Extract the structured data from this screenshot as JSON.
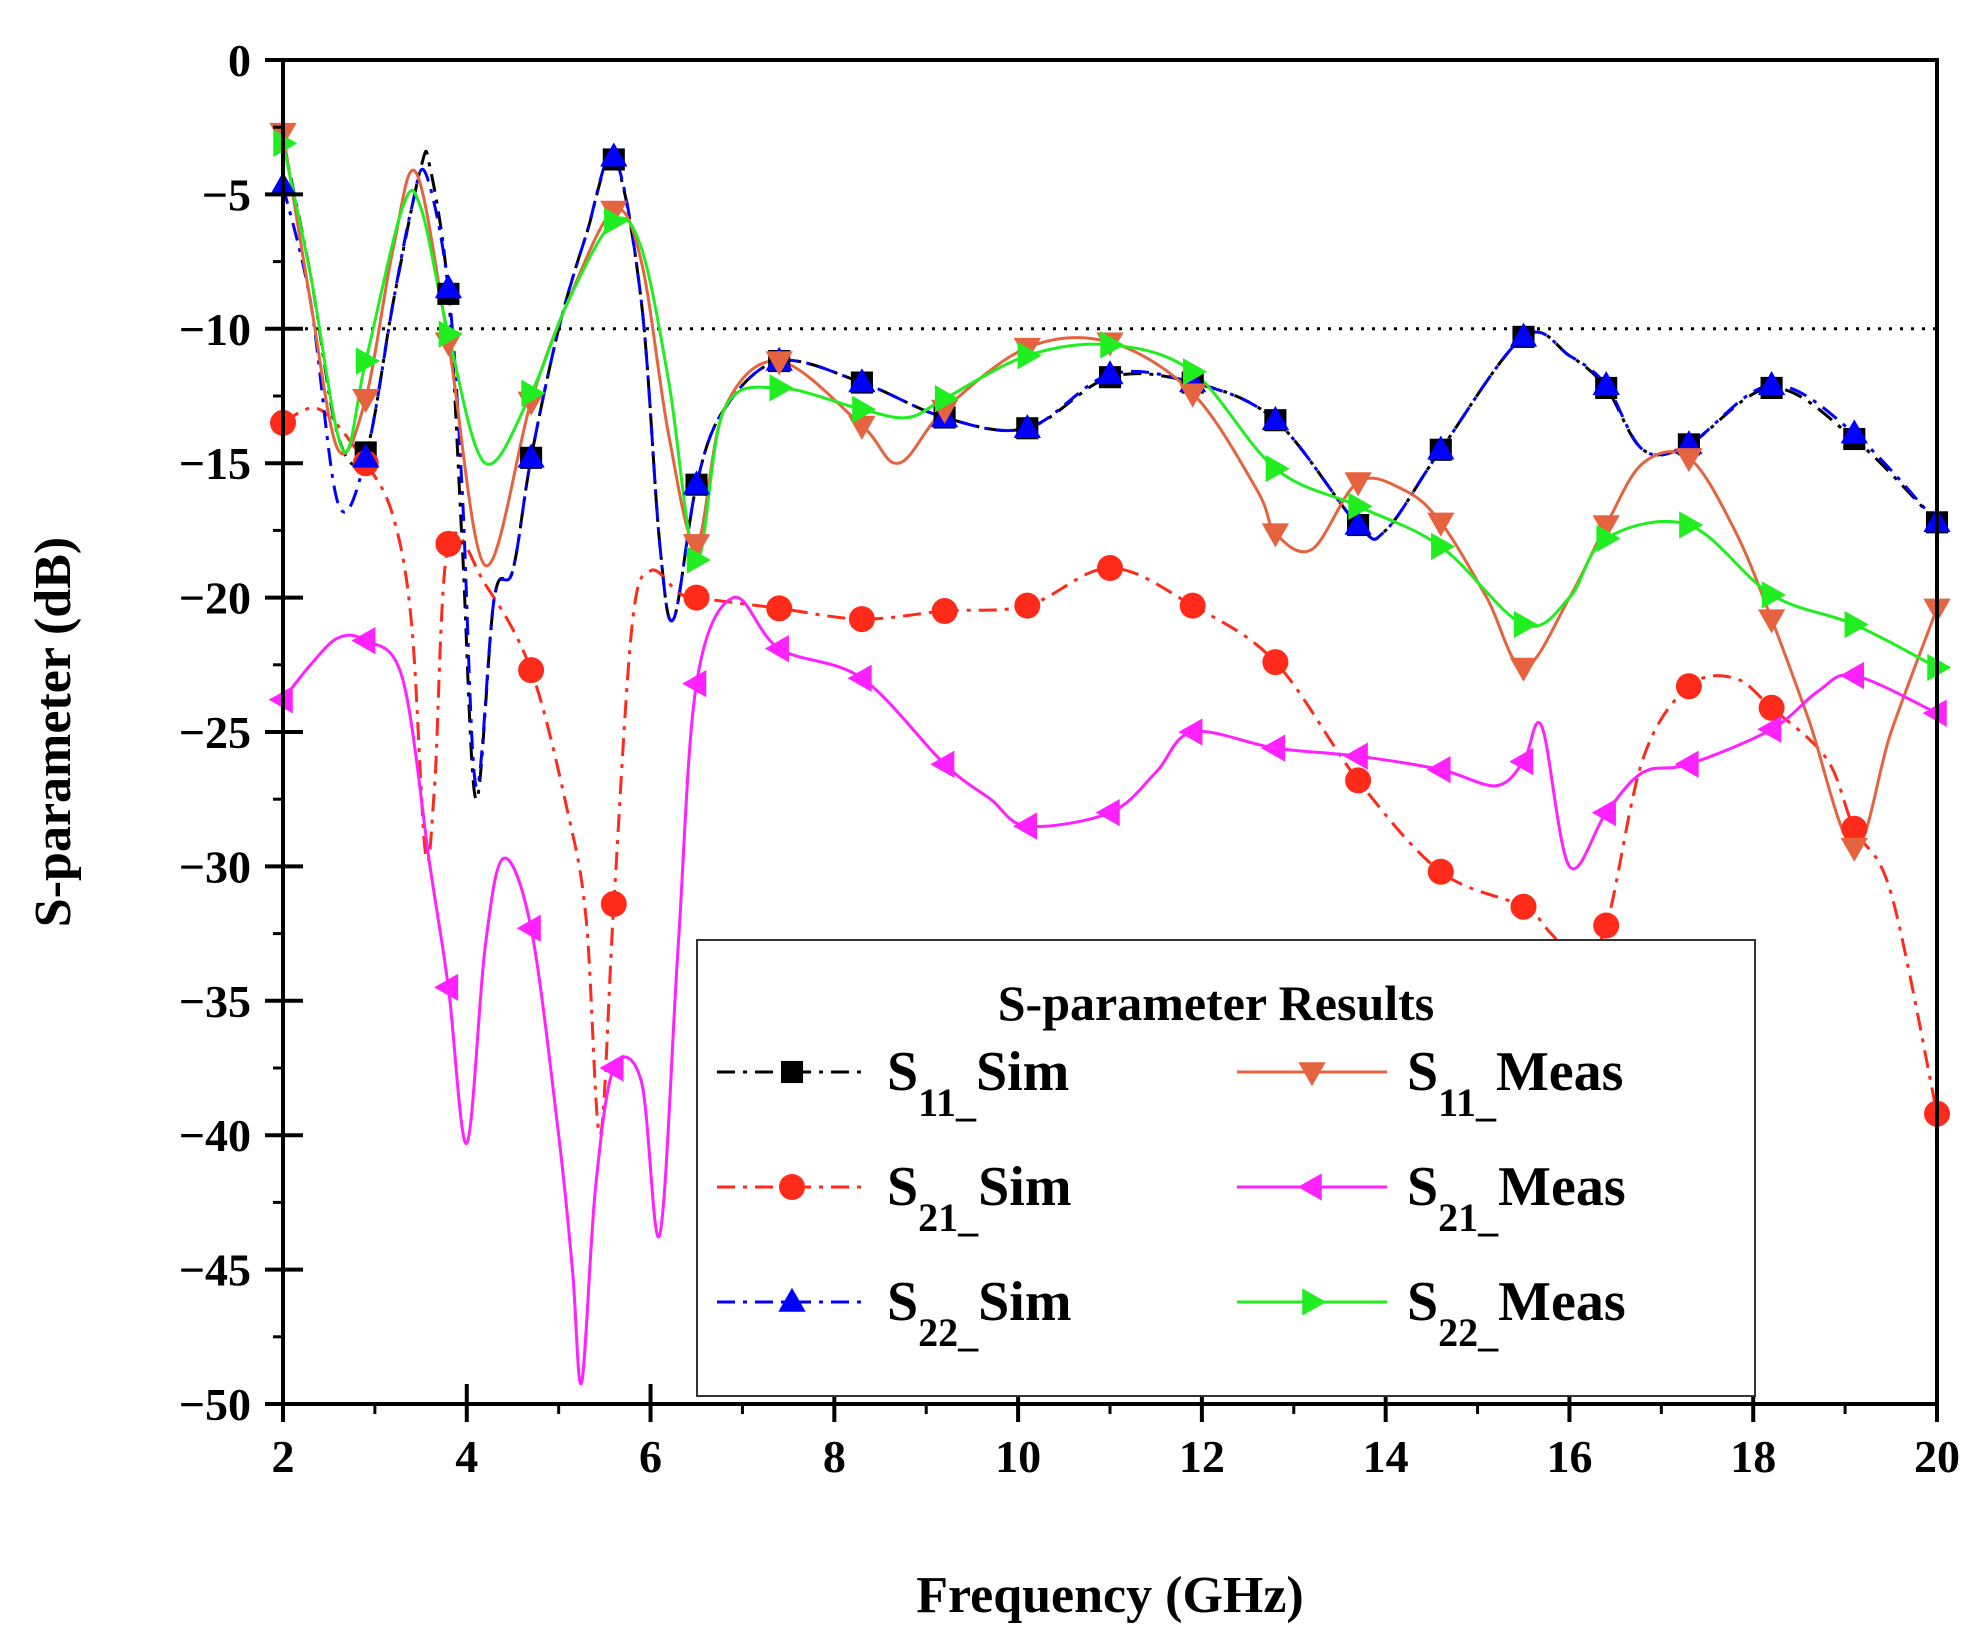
{
  "chart_data": {
    "type": "line",
    "title": "",
    "xlabel": "Frequency (GHz)",
    "ylabel": "S-parameter (dB)",
    "xlim": [
      2,
      20
    ],
    "ylim": [
      -50,
      0
    ],
    "xticks": [
      2,
      4,
      6,
      8,
      10,
      12,
      14,
      16,
      18,
      20
    ],
    "yticks": [
      0,
      -5,
      -10,
      -15,
      -20,
      -25,
      -30,
      -35,
      -40,
      -45,
      -50
    ],
    "xtick_labels": [
      "2",
      "4",
      "6",
      "8",
      "10",
      "12",
      "14",
      "16",
      "18",
      "20"
    ],
    "ytick_labels": [
      "0",
      "−5",
      "−10",
      "−15",
      "−20",
      "−25",
      "−30",
      "−35",
      "−40",
      "−45",
      "−50"
    ],
    "reference_line": {
      "y": -10,
      "style": "dotted"
    },
    "legend": {
      "title": "S-parameter Results",
      "position": "lower-right"
    },
    "series": [
      {
        "name": "S11_Sim",
        "base": "S",
        "sub": "11",
        "suffix": "Sim",
        "color": "#000000",
        "dash": "dashdot",
        "marker": "square",
        "legend_col": 0,
        "legend_row": 0,
        "points": [
          [
            2,
            -3
          ],
          [
            2.3,
            -8
          ],
          [
            2.6,
            -14
          ],
          [
            2.9,
            -14.6
          ],
          [
            3.2,
            -9
          ],
          [
            3.5,
            -4
          ],
          [
            3.6,
            -4
          ],
          [
            3.8,
            -8.7
          ],
          [
            3.95,
            -18
          ],
          [
            4.1,
            -27.5
          ],
          [
            4.3,
            -20
          ],
          [
            4.5,
            -19
          ],
          [
            4.7,
            -14.8
          ],
          [
            5,
            -10
          ],
          [
            5.3,
            -6.5
          ],
          [
            5.6,
            -3.7
          ],
          [
            5.9,
            -9
          ],
          [
            6.1,
            -18
          ],
          [
            6.25,
            -20.8
          ],
          [
            6.5,
            -15.8
          ],
          [
            6.8,
            -13
          ],
          [
            7.4,
            -11.2
          ],
          [
            8.3,
            -12
          ],
          [
            9.2,
            -13.3
          ],
          [
            10.1,
            -13.7
          ],
          [
            11,
            -11.8
          ],
          [
            11.9,
            -12
          ],
          [
            12.8,
            -13.4
          ],
          [
            13.7,
            -17.3
          ],
          [
            14,
            -17.5
          ],
          [
            14.6,
            -14.5
          ],
          [
            15.5,
            -10.3
          ],
          [
            16,
            -11
          ],
          [
            16.4,
            -12.2
          ],
          [
            16.8,
            -14.5
          ],
          [
            17.3,
            -14.3
          ],
          [
            18.2,
            -12.2
          ],
          [
            19.1,
            -14.1
          ],
          [
            20,
            -17.2
          ]
        ],
        "marker_x": [
          2.9,
          3.8,
          4.7,
          5.6,
          6.5,
          7.4,
          8.3,
          9.2,
          10.1,
          11,
          11.9,
          12.8,
          13.7,
          14.6,
          15.5,
          16.4,
          17.3,
          18.2,
          19.1,
          20
        ]
      },
      {
        "name": "S21_Sim",
        "base": "S",
        "sub": "21",
        "suffix": "Sim",
        "color": "#ff2a1a",
        "dash": "dashdot",
        "marker": "circle",
        "legend_col": 0,
        "legend_row": 1,
        "points": [
          [
            2,
            -13.5
          ],
          [
            2.4,
            -13
          ],
          [
            2.9,
            -15
          ],
          [
            3.2,
            -17
          ],
          [
            3.4,
            -21
          ],
          [
            3.55,
            -29.5
          ],
          [
            3.65,
            -27
          ],
          [
            3.8,
            -18
          ],
          [
            4.2,
            -19.5
          ],
          [
            4.7,
            -22.7
          ],
          [
            5.1,
            -28
          ],
          [
            5.3,
            -32
          ],
          [
            5.45,
            -40
          ],
          [
            5.6,
            -31.4
          ],
          [
            5.8,
            -21
          ],
          [
            6,
            -19
          ],
          [
            6.3,
            -19.8
          ],
          [
            6.5,
            -20
          ],
          [
            7.4,
            -20.4
          ],
          [
            8.3,
            -20.8
          ],
          [
            9.2,
            -20.5
          ],
          [
            10.1,
            -20.3
          ],
          [
            11,
            -18.9
          ],
          [
            11.9,
            -20.3
          ],
          [
            12.8,
            -22.4
          ],
          [
            13.7,
            -26.8
          ],
          [
            14.6,
            -30.2
          ],
          [
            15.5,
            -31.5
          ],
          [
            15.8,
            -32.5
          ],
          [
            16.1,
            -33.5
          ],
          [
            16.4,
            -32.2
          ],
          [
            16.8,
            -26
          ],
          [
            17.3,
            -23.3
          ],
          [
            17.8,
            -23
          ],
          [
            18.2,
            -24.1
          ],
          [
            18.8,
            -26
          ],
          [
            19.1,
            -28.6
          ],
          [
            19.5,
            -31
          ],
          [
            20,
            -39.2
          ]
        ],
        "marker_x": [
          2,
          2.9,
          3.8,
          4.7,
          5.6,
          6.5,
          7.4,
          8.3,
          9.2,
          10.1,
          11,
          11.9,
          12.8,
          13.7,
          14.6,
          15.5,
          16.4,
          17.3,
          18.2,
          19.1,
          20
        ]
      },
      {
        "name": "S22_Sim",
        "base": "S",
        "sub": "22",
        "suffix": "Sim",
        "color": "#0000ff",
        "dash": "dashdot",
        "marker": "triangle-up",
        "legend_col": 0,
        "legend_row": 2,
        "points": [
          [
            2,
            -4.7
          ],
          [
            2.3,
            -9
          ],
          [
            2.6,
            -16.5
          ],
          [
            2.9,
            -14.8
          ],
          [
            3.2,
            -9
          ],
          [
            3.4,
            -5.5
          ],
          [
            3.55,
            -4.2
          ],
          [
            3.8,
            -8.5
          ],
          [
            3.95,
            -16
          ],
          [
            4.1,
            -27
          ],
          [
            4.3,
            -20
          ],
          [
            4.5,
            -19
          ],
          [
            4.7,
            -14.8
          ],
          [
            5,
            -10
          ],
          [
            5.3,
            -6.5
          ],
          [
            5.6,
            -3.6
          ],
          [
            5.9,
            -9
          ],
          [
            6.1,
            -18
          ],
          [
            6.25,
            -20.8
          ],
          [
            6.5,
            -15.8
          ],
          [
            6.8,
            -13
          ],
          [
            7.4,
            -11.2
          ],
          [
            8.3,
            -12
          ],
          [
            9.2,
            -13.3
          ],
          [
            10.1,
            -13.7
          ],
          [
            11,
            -11.7
          ],
          [
            11.9,
            -12
          ],
          [
            12.8,
            -13.4
          ],
          [
            13.7,
            -17.3
          ],
          [
            14,
            -17.5
          ],
          [
            14.6,
            -14.5
          ],
          [
            15.5,
            -10.3
          ],
          [
            16,
            -11
          ],
          [
            16.4,
            -12.1
          ],
          [
            16.8,
            -14.5
          ],
          [
            17.3,
            -14.3
          ],
          [
            18.2,
            -12.1
          ],
          [
            19.1,
            -13.9
          ],
          [
            20,
            -17.2
          ]
        ],
        "marker_x": [
          2,
          2.9,
          3.8,
          4.7,
          5.6,
          6.5,
          7.4,
          8.3,
          9.2,
          10.1,
          11,
          11.9,
          12.8,
          13.7,
          14.6,
          15.5,
          16.4,
          17.3,
          18.2,
          19.1,
          20
        ]
      },
      {
        "name": "S11_Meas",
        "base": "S",
        "sub": "11",
        "suffix": "Meas",
        "color": "#e5633f",
        "dash": "solid",
        "marker": "triangle-down",
        "legend_col": 1,
        "legend_row": 0,
        "points": [
          [
            2,
            -2.7
          ],
          [
            2.3,
            -9
          ],
          [
            2.6,
            -14.5
          ],
          [
            2.9,
            -12.6
          ],
          [
            3.2,
            -7
          ],
          [
            3.45,
            -4.2
          ],
          [
            3.8,
            -10.5
          ],
          [
            4.2,
            -18.8
          ],
          [
            4.7,
            -12.7
          ],
          [
            5.1,
            -9
          ],
          [
            5.6,
            -5.6
          ],
          [
            5.9,
            -7.5
          ],
          [
            6.2,
            -14
          ],
          [
            6.5,
            -18
          ],
          [
            6.8,
            -13
          ],
          [
            7.4,
            -11.2
          ],
          [
            8.3,
            -13.6
          ],
          [
            8.7,
            -15
          ],
          [
            9.2,
            -13
          ],
          [
            10.1,
            -10.7
          ],
          [
            11,
            -10.5
          ],
          [
            11.9,
            -12.4
          ],
          [
            12.6,
            -16
          ],
          [
            12.8,
            -17.6
          ],
          [
            13.2,
            -18.2
          ],
          [
            13.7,
            -15.7
          ],
          [
            14.2,
            -16
          ],
          [
            14.6,
            -17.2
          ],
          [
            15.1,
            -20
          ],
          [
            15.5,
            -22.6
          ],
          [
            16,
            -20
          ],
          [
            16.4,
            -17.3
          ],
          [
            16.8,
            -15
          ],
          [
            17.3,
            -14.8
          ],
          [
            17.8,
            -17.5
          ],
          [
            18.2,
            -20.8
          ],
          [
            18.6,
            -24.5
          ],
          [
            19.1,
            -29.3
          ],
          [
            19.5,
            -25
          ],
          [
            20,
            -20.4
          ]
        ],
        "marker_x": [
          2,
          2.9,
          3.8,
          4.7,
          5.6,
          6.5,
          7.4,
          8.3,
          9.2,
          10.1,
          11,
          11.9,
          12.8,
          13.7,
          14.6,
          15.5,
          16.4,
          17.3,
          18.2,
          19.1,
          20
        ]
      },
      {
        "name": "S21_Meas",
        "base": "S",
        "sub": "21",
        "suffix": "Meas",
        "color": "#ff21ff",
        "dash": "solid",
        "marker": "triangle-left",
        "legend_col": 1,
        "legend_row": 1,
        "points": [
          [
            2,
            -23.8
          ],
          [
            2.3,
            -22.5
          ],
          [
            2.6,
            -21.5
          ],
          [
            2.9,
            -21.6
          ],
          [
            3.3,
            -23
          ],
          [
            3.6,
            -30
          ],
          [
            3.8,
            -34.5
          ],
          [
            4,
            -40.3
          ],
          [
            4.2,
            -33
          ],
          [
            4.4,
            -29.7
          ],
          [
            4.7,
            -32.3
          ],
          [
            5,
            -40
          ],
          [
            5.15,
            -45
          ],
          [
            5.25,
            -49.2
          ],
          [
            5.4,
            -42
          ],
          [
            5.6,
            -37.5
          ],
          [
            5.9,
            -38
          ],
          [
            6.1,
            -43.7
          ],
          [
            6.3,
            -33
          ],
          [
            6.5,
            -23.2
          ],
          [
            6.9,
            -20
          ],
          [
            7.4,
            -21.9
          ],
          [
            8.3,
            -23
          ],
          [
            9.2,
            -26.2
          ],
          [
            9.7,
            -27.5
          ],
          [
            10.1,
            -28.5
          ],
          [
            11,
            -28
          ],
          [
            11.5,
            -26.5
          ],
          [
            11.9,
            -25
          ],
          [
            12.8,
            -25.6
          ],
          [
            13.7,
            -25.9
          ],
          [
            14.6,
            -26.4
          ],
          [
            15.2,
            -27
          ],
          [
            15.5,
            -26.1
          ],
          [
            15.7,
            -24.8
          ],
          [
            16,
            -30
          ],
          [
            16.4,
            -28
          ],
          [
            16.8,
            -26.5
          ],
          [
            17.3,
            -26.2
          ],
          [
            18.2,
            -24.9
          ],
          [
            18.7,
            -23.5
          ],
          [
            19.1,
            -22.9
          ],
          [
            20,
            -24.3
          ]
        ],
        "marker_x": [
          2,
          2.9,
          3.8,
          4.7,
          5.6,
          6.5,
          7.4,
          8.3,
          9.2,
          10.1,
          11,
          11.9,
          12.8,
          13.7,
          14.6,
          15.5,
          16.4,
          17.3,
          18.2,
          19.1,
          20
        ]
      },
      {
        "name": "S22_Meas",
        "base": "S",
        "sub": "22",
        "suffix": "Meas",
        "color": "#21ee21",
        "dash": "solid",
        "marker": "triangle-right",
        "legend_col": 1,
        "legend_row": 2,
        "points": [
          [
            2,
            -3.1
          ],
          [
            2.3,
            -8
          ],
          [
            2.65,
            -14.5
          ],
          [
            2.9,
            -11.2
          ],
          [
            3.3,
            -5.5
          ],
          [
            3.5,
            -5.5
          ],
          [
            3.8,
            -10.2
          ],
          [
            4.2,
            -15
          ],
          [
            4.7,
            -12.4
          ],
          [
            5.1,
            -9
          ],
          [
            5.6,
            -6
          ],
          [
            5.9,
            -7
          ],
          [
            6.2,
            -12
          ],
          [
            6.5,
            -18.6
          ],
          [
            6.8,
            -13
          ],
          [
            7.4,
            -12.2
          ],
          [
            8.3,
            -13
          ],
          [
            8.8,
            -13.3
          ],
          [
            9.2,
            -12.6
          ],
          [
            10.1,
            -11
          ],
          [
            11,
            -10.6
          ],
          [
            11.9,
            -11.6
          ],
          [
            12.8,
            -15.2
          ],
          [
            13.7,
            -16.6
          ],
          [
            14.6,
            -18.1
          ],
          [
            15.5,
            -21
          ],
          [
            16,
            -20
          ],
          [
            16.4,
            -17.8
          ],
          [
            17.3,
            -17.3
          ],
          [
            18.2,
            -19.9
          ],
          [
            19.1,
            -21
          ],
          [
            20,
            -22.6
          ]
        ],
        "marker_x": [
          2,
          2.9,
          3.8,
          4.7,
          5.6,
          6.5,
          7.4,
          8.3,
          9.2,
          10.1,
          11,
          11.9,
          12.8,
          13.7,
          14.6,
          15.5,
          16.4,
          17.3,
          18.2,
          19.1,
          20
        ]
      }
    ]
  }
}
